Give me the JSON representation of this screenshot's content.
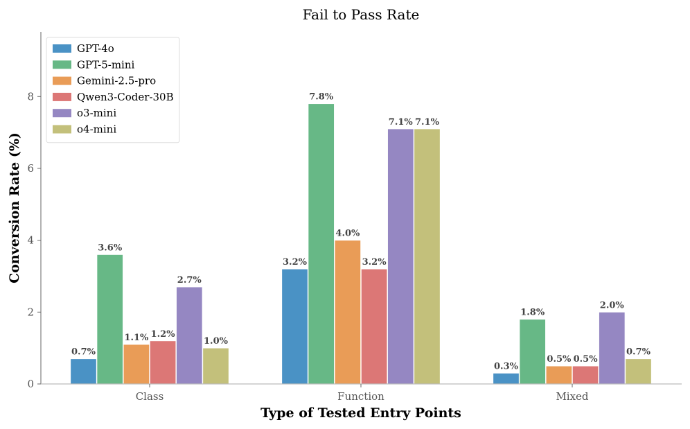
{
  "chart_data": {
    "type": "bar",
    "title": "Fail to Pass Rate",
    "xlabel": "Type of Tested Entry Points",
    "ylabel": "Conversion Rate (%)",
    "categories": [
      "Class",
      "Function",
      "Mixed"
    ],
    "ylim": [
      0,
      9.8
    ],
    "yticks": [
      0,
      2,
      4,
      6,
      8
    ],
    "legend_position": "top-left",
    "grid": false,
    "label_suffix": "%",
    "series": [
      {
        "name": "GPT-4o",
        "color": "#4a92c5",
        "values": [
          0.7,
          3.2,
          0.3
        ],
        "labels": [
          "0.7",
          "3.2",
          "0.3"
        ]
      },
      {
        "name": "GPT-5-mini",
        "color": "#67b886",
        "values": [
          3.6,
          7.8,
          1.8
        ],
        "labels": [
          "3.6",
          "7.8",
          "1.8"
        ]
      },
      {
        "name": "Gemini-2.5-pro",
        "color": "#e99c57",
        "values": [
          1.1,
          4.0,
          0.5
        ],
        "labels": [
          "1.1",
          "4.0",
          "0.5"
        ]
      },
      {
        "name": "Qwen3-Coder-30B",
        "color": "#dc7776",
        "values": [
          1.2,
          3.2,
          0.5
        ],
        "labels": [
          "1.2",
          "3.2",
          "0.5"
        ]
      },
      {
        "name": "o3-mini",
        "color": "#9587c2",
        "values": [
          2.7,
          7.1,
          2.0
        ],
        "labels": [
          "2.7",
          "7.1",
          "2.0"
        ]
      },
      {
        "name": "o4-mini",
        "color": "#c3c07b",
        "values": [
          1.0,
          7.1,
          0.7
        ],
        "labels": [
          "1.0",
          "7.1",
          "0.7"
        ]
      }
    ]
  }
}
